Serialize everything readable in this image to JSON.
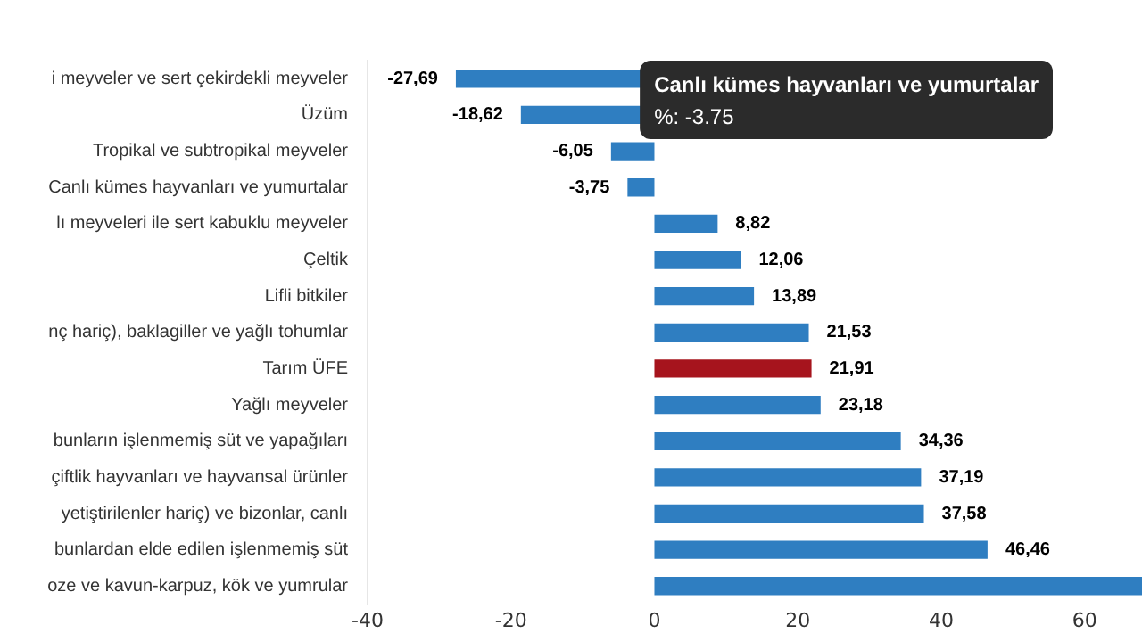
{
  "chart_data": {
    "type": "bar",
    "orientation": "horizontal",
    "categories": [
      "i meyveler ve sert çekirdekli meyveler",
      "Üzüm",
      "Tropikal ve subtropikal meyveler",
      "Canlı kümes hayvanları ve yumurtalar",
      "lı meyveleri ile sert kabuklu meyveler",
      "Çeltik",
      "Lifli bitkiler",
      "nç hariç), baklagiller ve yağlı tohumlar",
      "Tarım ÜFE",
      "Yağlı meyveler",
      "bunların işlenmemiş süt ve yapağıları",
      "çiftlik hayvanları ve hayvansal ürünler",
      "yetiştirilenler hariç) ve bizonlar, canlı",
      "bunlardan elde edilen işlenmemiş süt",
      "oze ve kavun-karpuz, kök ve yumrular"
    ],
    "values": [
      -27.69,
      -18.62,
      -6.05,
      -3.75,
      8.82,
      12.06,
      13.89,
      21.53,
      21.91,
      23.18,
      34.36,
      37.19,
      37.58,
      46.46,
      68
    ],
    "value_labels": [
      "-27,69",
      "-18,62",
      "-6,05",
      "-3,75",
      "8,82",
      "12,06",
      "13,89",
      "21,53",
      "21,91",
      "23,18",
      "34,36",
      "37,19",
      "37,58",
      "46,46",
      null
    ],
    "colors": [
      "#2f7ec1",
      "#2f7ec1",
      "#2f7ec1",
      "#2f7ec1",
      "#2f7ec1",
      "#2f7ec1",
      "#2f7ec1",
      "#2f7ec1",
      "#a6141d",
      "#2f7ec1",
      "#2f7ec1",
      "#2f7ec1",
      "#2f7ec1",
      "#2f7ec1",
      "#2f7ec1"
    ],
    "xlim": [
      -40,
      68
    ],
    "xticks": [
      -40,
      -20,
      0,
      20,
      40,
      60
    ],
    "grid": false,
    "annotations": [
      "Canlı kümes hayvanları ve yumurtalar",
      "%: -3.75"
    ]
  }
}
